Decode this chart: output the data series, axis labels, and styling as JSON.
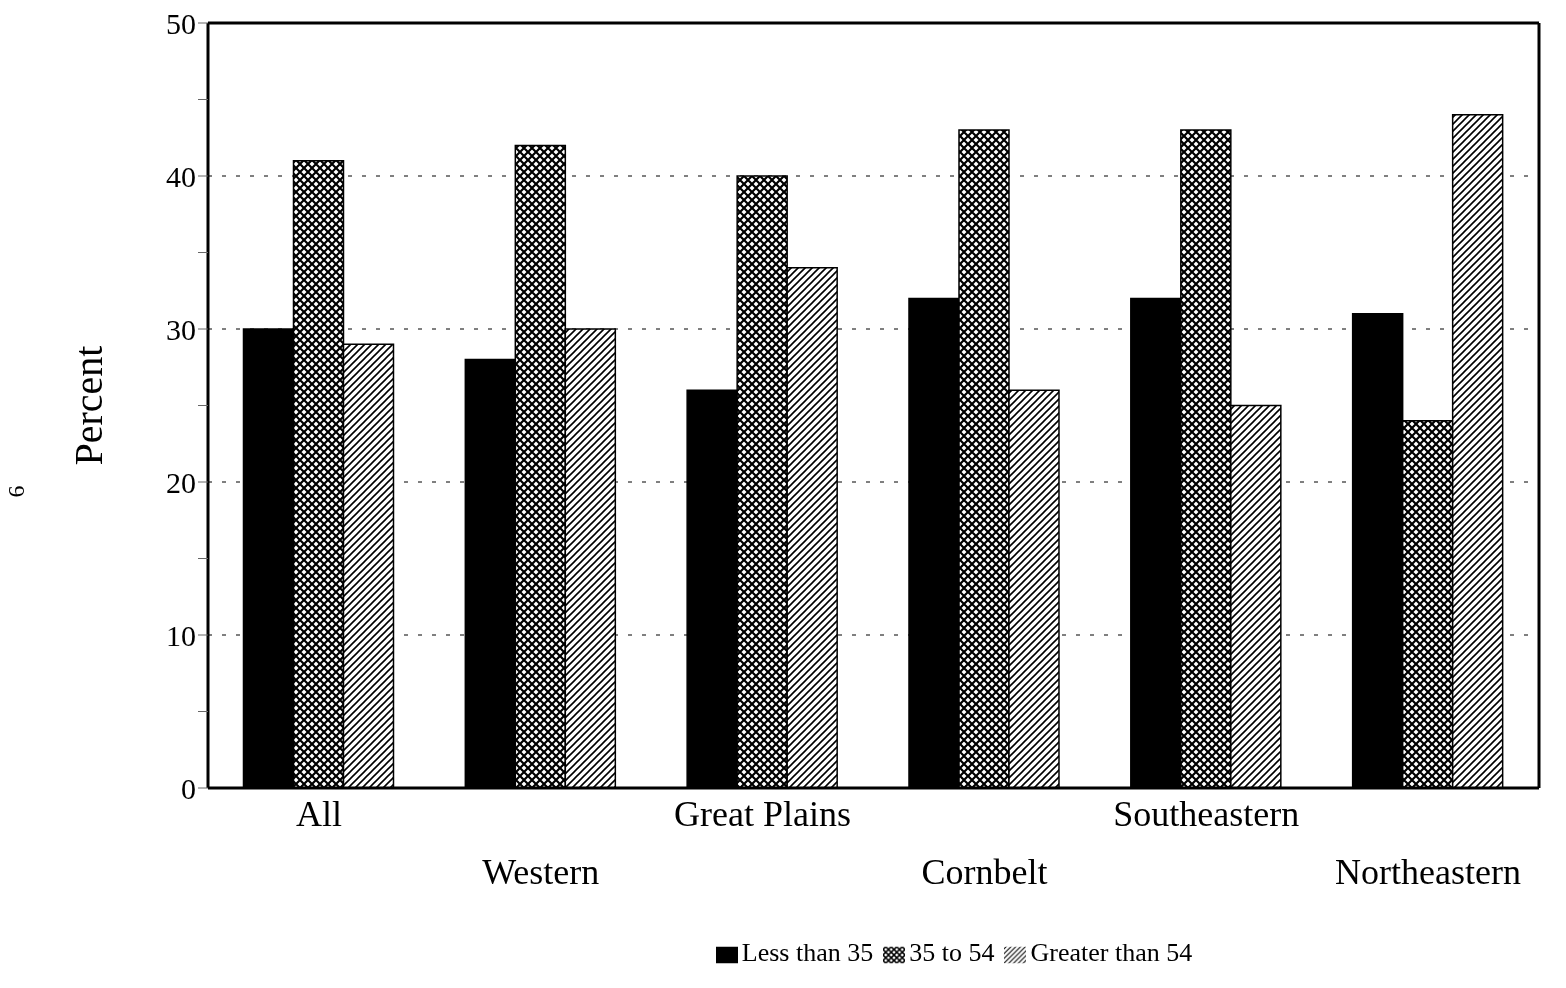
{
  "chart_data": {
    "type": "bar",
    "ylabel": "Percent",
    "categories": [
      "All",
      "Western",
      "Great Plains",
      "Cornbelt",
      "Southeastern",
      "Northeastern"
    ],
    "series": [
      {
        "name": "Less than 35",
        "color": "#000000",
        "values": [
          30,
          28,
          26,
          32,
          32,
          31
        ]
      },
      {
        "name": "35 to 54",
        "color": "#000000",
        "values": [
          41,
          42,
          40,
          43,
          43,
          24
        ]
      },
      {
        "name": "Greater than 54",
        "color": "#000000",
        "values": [
          29,
          30,
          34,
          26,
          25,
          44
        ]
      }
    ],
    "ylim": [
      0,
      50
    ],
    "yticks": [
      0,
      {
        "value": 5,
        "label": null
      },
      10,
      {
        "value": 15,
        "label": null
      },
      20,
      {
        "value": 25,
        "label": null
      },
      30,
      {
        "value": 35,
        "label": null
      },
      40,
      {
        "value": 45,
        "label": null
      },
      50
    ],
    "grid": "y",
    "legend": "bottom",
    "annotations": [
      "6"
    ]
  }
}
